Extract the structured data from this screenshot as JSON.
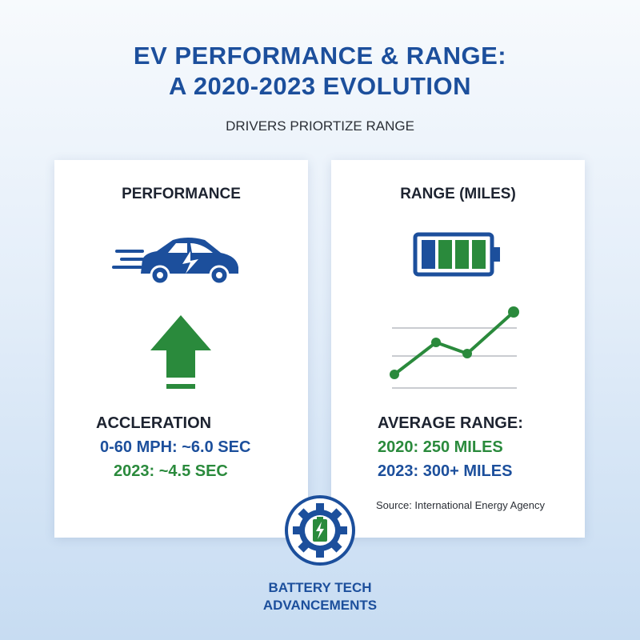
{
  "header": {
    "title_lines": [
      "EV PERFORMANCE & RANGE:",
      "A 2020-2023 EVOLUTION"
    ],
    "subtitle": "DRIVERS PRIORTIZE RANGE"
  },
  "cards": [
    {
      "title": "PERFORMANCE",
      "label": "ACCLERATION",
      "lines": [
        "0-60 MPH: ~6.0 SEC",
        "2023: ~4.5 SEC"
      ]
    },
    {
      "title": "RANGE (MILES)",
      "label": "AVERAGE RANGE:",
      "lines": [
        "2020: 250 MILES",
        "2023: 300+ MILES"
      ],
      "source": "Source: International Energy Agency"
    }
  ],
  "badge": {
    "lines": [
      "BATTERY TECH",
      "ADVANCEMENTS"
    ]
  }
}
